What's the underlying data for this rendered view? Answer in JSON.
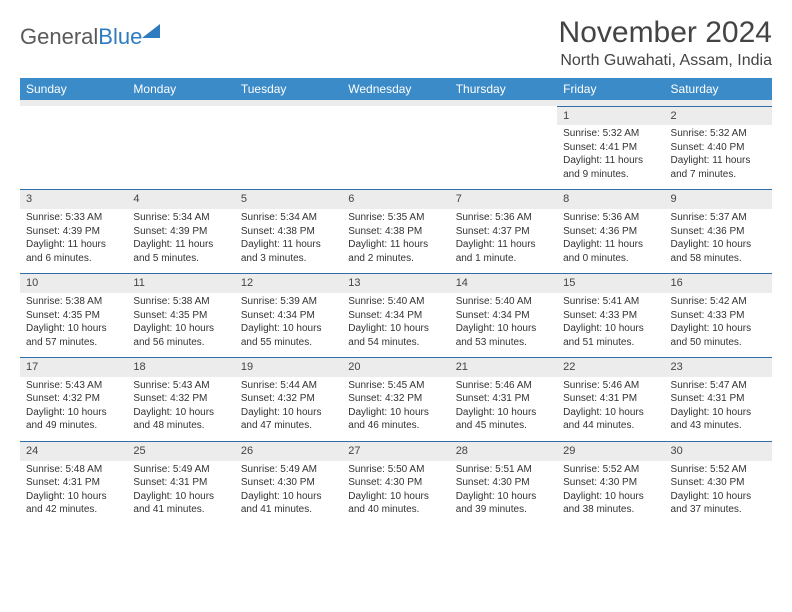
{
  "brand": {
    "part1": "General",
    "part2": "Blue"
  },
  "header": {
    "month_title": "November 2024",
    "location": "North Guwahati, Assam, India"
  },
  "style": {
    "header_bg": "#3b8bc8",
    "header_fg": "#ffffff",
    "row_border": "#2f6fa5",
    "daynum_bg": "#ececec",
    "text_color": "#333333"
  },
  "weekdays": [
    "Sunday",
    "Monday",
    "Tuesday",
    "Wednesday",
    "Thursday",
    "Friday",
    "Saturday"
  ],
  "weeks": [
    [
      {
        "n": "",
        "sr": "",
        "ss": "",
        "dl": ""
      },
      {
        "n": "",
        "sr": "",
        "ss": "",
        "dl": ""
      },
      {
        "n": "",
        "sr": "",
        "ss": "",
        "dl": ""
      },
      {
        "n": "",
        "sr": "",
        "ss": "",
        "dl": ""
      },
      {
        "n": "",
        "sr": "",
        "ss": "",
        "dl": ""
      },
      {
        "n": "1",
        "sr": "Sunrise: 5:32 AM",
        "ss": "Sunset: 4:41 PM",
        "dl": "Daylight: 11 hours and 9 minutes."
      },
      {
        "n": "2",
        "sr": "Sunrise: 5:32 AM",
        "ss": "Sunset: 4:40 PM",
        "dl": "Daylight: 11 hours and 7 minutes."
      }
    ],
    [
      {
        "n": "3",
        "sr": "Sunrise: 5:33 AM",
        "ss": "Sunset: 4:39 PM",
        "dl": "Daylight: 11 hours and 6 minutes."
      },
      {
        "n": "4",
        "sr": "Sunrise: 5:34 AM",
        "ss": "Sunset: 4:39 PM",
        "dl": "Daylight: 11 hours and 5 minutes."
      },
      {
        "n": "5",
        "sr": "Sunrise: 5:34 AM",
        "ss": "Sunset: 4:38 PM",
        "dl": "Daylight: 11 hours and 3 minutes."
      },
      {
        "n": "6",
        "sr": "Sunrise: 5:35 AM",
        "ss": "Sunset: 4:38 PM",
        "dl": "Daylight: 11 hours and 2 minutes."
      },
      {
        "n": "7",
        "sr": "Sunrise: 5:36 AM",
        "ss": "Sunset: 4:37 PM",
        "dl": "Daylight: 11 hours and 1 minute."
      },
      {
        "n": "8",
        "sr": "Sunrise: 5:36 AM",
        "ss": "Sunset: 4:36 PM",
        "dl": "Daylight: 11 hours and 0 minutes."
      },
      {
        "n": "9",
        "sr": "Sunrise: 5:37 AM",
        "ss": "Sunset: 4:36 PM",
        "dl": "Daylight: 10 hours and 58 minutes."
      }
    ],
    [
      {
        "n": "10",
        "sr": "Sunrise: 5:38 AM",
        "ss": "Sunset: 4:35 PM",
        "dl": "Daylight: 10 hours and 57 minutes."
      },
      {
        "n": "11",
        "sr": "Sunrise: 5:38 AM",
        "ss": "Sunset: 4:35 PM",
        "dl": "Daylight: 10 hours and 56 minutes."
      },
      {
        "n": "12",
        "sr": "Sunrise: 5:39 AM",
        "ss": "Sunset: 4:34 PM",
        "dl": "Daylight: 10 hours and 55 minutes."
      },
      {
        "n": "13",
        "sr": "Sunrise: 5:40 AM",
        "ss": "Sunset: 4:34 PM",
        "dl": "Daylight: 10 hours and 54 minutes."
      },
      {
        "n": "14",
        "sr": "Sunrise: 5:40 AM",
        "ss": "Sunset: 4:34 PM",
        "dl": "Daylight: 10 hours and 53 minutes."
      },
      {
        "n": "15",
        "sr": "Sunrise: 5:41 AM",
        "ss": "Sunset: 4:33 PM",
        "dl": "Daylight: 10 hours and 51 minutes."
      },
      {
        "n": "16",
        "sr": "Sunrise: 5:42 AM",
        "ss": "Sunset: 4:33 PM",
        "dl": "Daylight: 10 hours and 50 minutes."
      }
    ],
    [
      {
        "n": "17",
        "sr": "Sunrise: 5:43 AM",
        "ss": "Sunset: 4:32 PM",
        "dl": "Daylight: 10 hours and 49 minutes."
      },
      {
        "n": "18",
        "sr": "Sunrise: 5:43 AM",
        "ss": "Sunset: 4:32 PM",
        "dl": "Daylight: 10 hours and 48 minutes."
      },
      {
        "n": "19",
        "sr": "Sunrise: 5:44 AM",
        "ss": "Sunset: 4:32 PM",
        "dl": "Daylight: 10 hours and 47 minutes."
      },
      {
        "n": "20",
        "sr": "Sunrise: 5:45 AM",
        "ss": "Sunset: 4:32 PM",
        "dl": "Daylight: 10 hours and 46 minutes."
      },
      {
        "n": "21",
        "sr": "Sunrise: 5:46 AM",
        "ss": "Sunset: 4:31 PM",
        "dl": "Daylight: 10 hours and 45 minutes."
      },
      {
        "n": "22",
        "sr": "Sunrise: 5:46 AM",
        "ss": "Sunset: 4:31 PM",
        "dl": "Daylight: 10 hours and 44 minutes."
      },
      {
        "n": "23",
        "sr": "Sunrise: 5:47 AM",
        "ss": "Sunset: 4:31 PM",
        "dl": "Daylight: 10 hours and 43 minutes."
      }
    ],
    [
      {
        "n": "24",
        "sr": "Sunrise: 5:48 AM",
        "ss": "Sunset: 4:31 PM",
        "dl": "Daylight: 10 hours and 42 minutes."
      },
      {
        "n": "25",
        "sr": "Sunrise: 5:49 AM",
        "ss": "Sunset: 4:31 PM",
        "dl": "Daylight: 10 hours and 41 minutes."
      },
      {
        "n": "26",
        "sr": "Sunrise: 5:49 AM",
        "ss": "Sunset: 4:30 PM",
        "dl": "Daylight: 10 hours and 41 minutes."
      },
      {
        "n": "27",
        "sr": "Sunrise: 5:50 AM",
        "ss": "Sunset: 4:30 PM",
        "dl": "Daylight: 10 hours and 40 minutes."
      },
      {
        "n": "28",
        "sr": "Sunrise: 5:51 AM",
        "ss": "Sunset: 4:30 PM",
        "dl": "Daylight: 10 hours and 39 minutes."
      },
      {
        "n": "29",
        "sr": "Sunrise: 5:52 AM",
        "ss": "Sunset: 4:30 PM",
        "dl": "Daylight: 10 hours and 38 minutes."
      },
      {
        "n": "30",
        "sr": "Sunrise: 5:52 AM",
        "ss": "Sunset: 4:30 PM",
        "dl": "Daylight: 10 hours and 37 minutes."
      }
    ]
  ]
}
